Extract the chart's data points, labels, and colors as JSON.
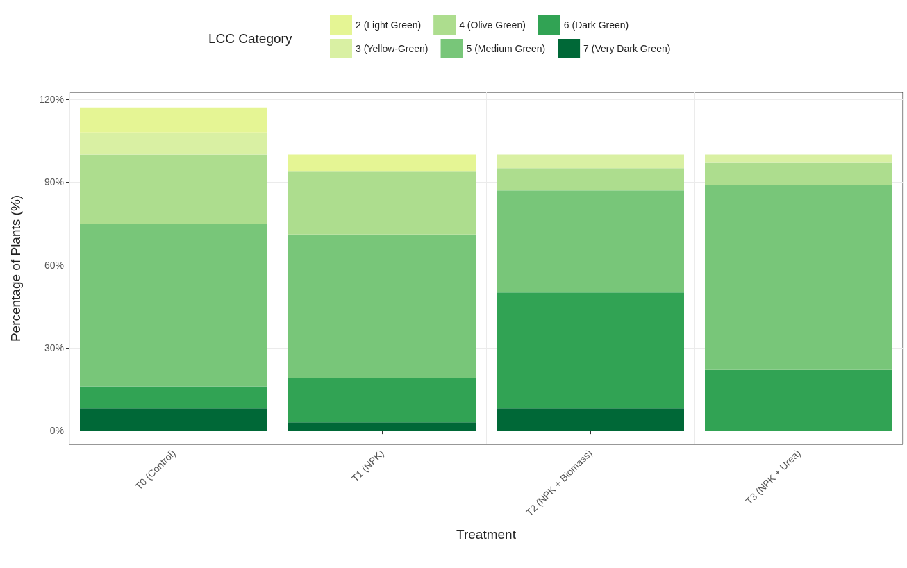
{
  "chart_data": {
    "type": "bar",
    "stacked": true,
    "xlabel": "Treatment",
    "ylabel": "Percentage of Plants (%)",
    "legend_title": "LCC Category",
    "legend": "top",
    "categories": [
      "T0 (Control)",
      "T1 (NPK)",
      "T2 (NPK + Biomass)",
      "T3 (NPK + Urea)"
    ],
    "series": [
      {
        "name": "7 (Very Dark Green)",
        "color": "#006837",
        "values": [
          8,
          3,
          8,
          0
        ]
      },
      {
        "name": "6 (Dark Green)",
        "color": "#31a354",
        "values": [
          8,
          16,
          42,
          22
        ]
      },
      {
        "name": "5 (Medium Green)",
        "color": "#78c679",
        "values": [
          59,
          52,
          37,
          67
        ]
      },
      {
        "name": "4 (Olive Green)",
        "color": "#addd8e",
        "values": [
          25,
          23,
          8,
          8
        ]
      },
      {
        "name": "3 (Yellow-Green)",
        "color": "#d9f0a3",
        "values": [
          8,
          0,
          5,
          3
        ]
      },
      {
        "name": "2 (Light Green)",
        "color": "#e5f594",
        "values": [
          9,
          6,
          0,
          0
        ]
      }
    ],
    "ylim": [
      -5,
      122.5
    ],
    "yticks": [
      {
        "value": 0,
        "label": "0%"
      },
      {
        "value": 30,
        "label": "30%"
      },
      {
        "value": 60,
        "label": "60%"
      },
      {
        "value": 90,
        "label": "90%"
      },
      {
        "value": 120,
        "label": "120%"
      }
    ],
    "grid": true
  }
}
